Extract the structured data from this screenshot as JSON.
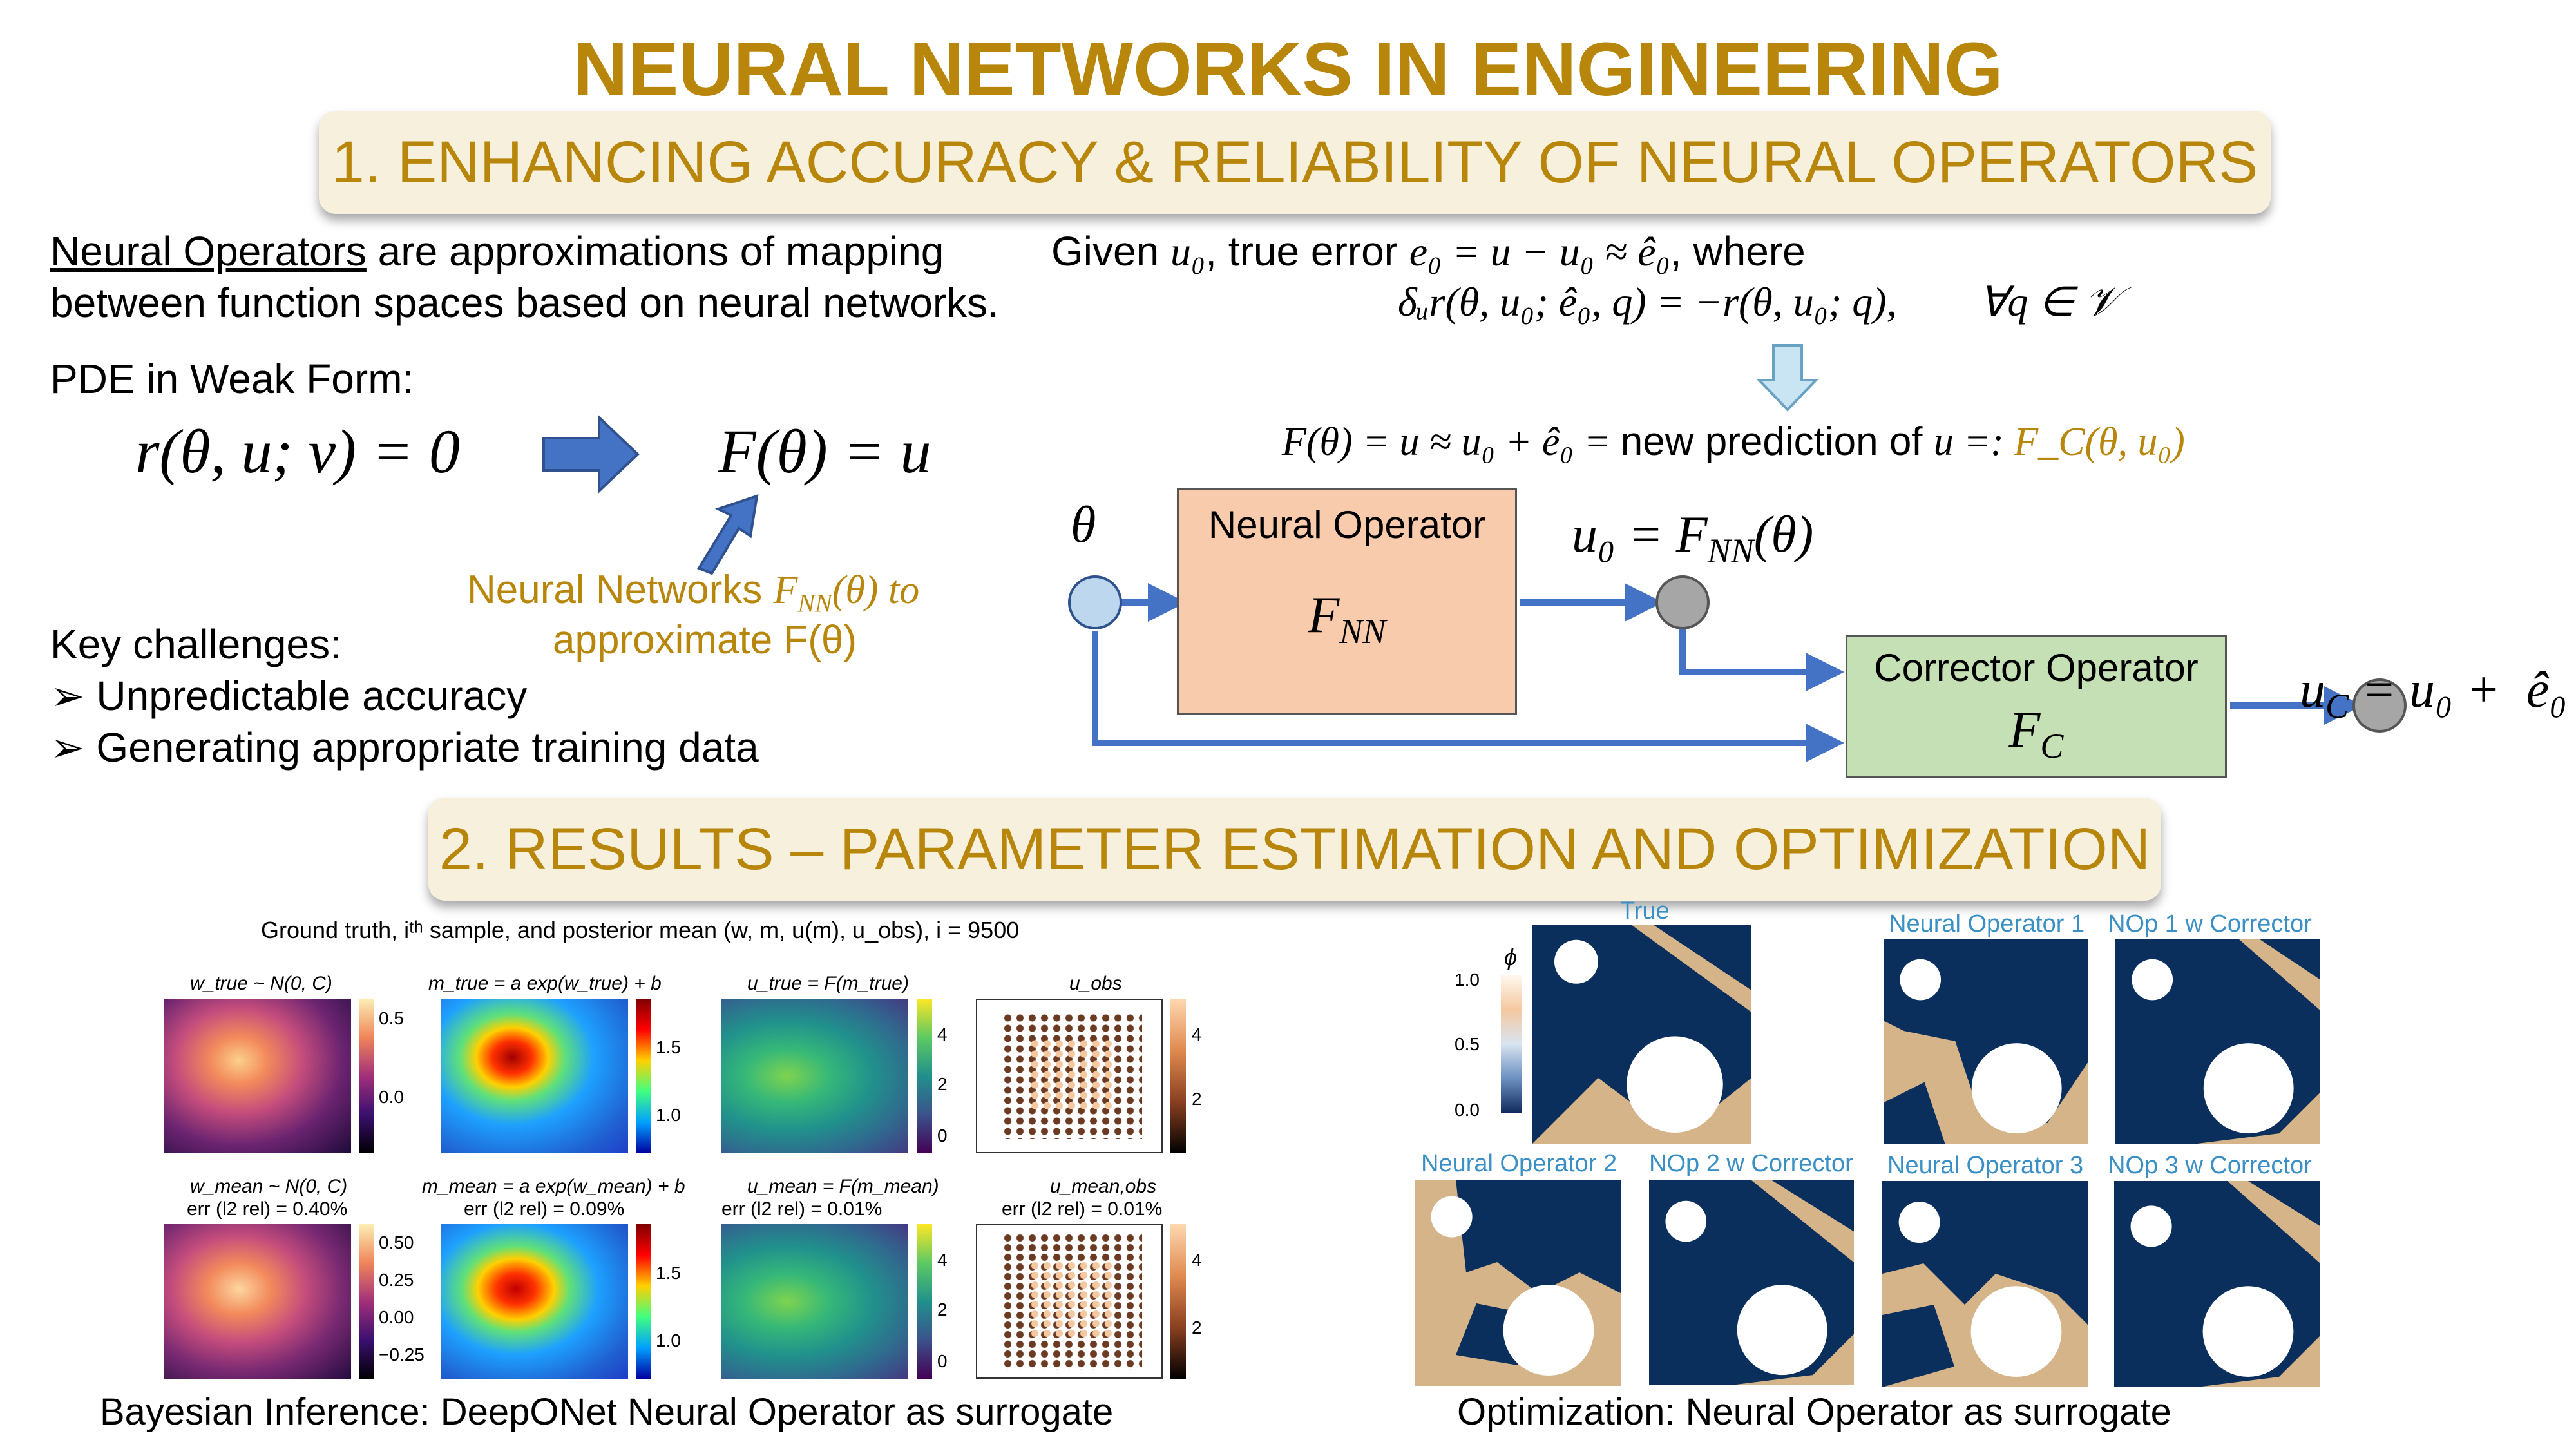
{
  "title": "NEURAL NETWORKS IN ENGINEERING",
  "section1": {
    "banner": "1. ENHANCING ACCURACY & RELIABILITY OF NEURAL OPERATORS",
    "intro_term": "Neural Operators",
    "intro_rest": " are approximations of mapping",
    "intro_line2": "between function spaces based on neural networks.",
    "pde_label": "PDE in Weak Form:",
    "eq_weak": "r(θ, u; v) = 0",
    "eq_map": "F(θ) = u",
    "nn_note_a": "Neural Networks ",
    "nn_note_sym": "F",
    "nn_note_sub": "NN",
    "nn_note_b": "(θ) to",
    "nn_note_line2": "approximate F(θ)",
    "challenges_title": "Key challenges:",
    "challenges": [
      "Unpredictable accuracy",
      "Generating appropriate training data"
    ],
    "given_a": "Given ",
    "given_u0": "u₀",
    "given_b": ", true error ",
    "given_eq": "e₀ = u − u₀ ≈ ê₀",
    "given_c": ", where",
    "var_eq": "δᵤr(θ, u₀; ê₀, q) = −r(θ, u₀; q),        ∀q ∈ 𝒱",
    "pred_eq": "F(θ) = u ≈ u₀ + ê₀ = ",
    "pred_text": "new prediction of ",
    "pred_u": "u =: ",
    "pred_fc": "F_C(θ, u₀)",
    "diagram": {
      "theta": "θ",
      "neural_operator_label": "Neural Operator",
      "fnn_label": "F",
      "fnn_sub": "NN",
      "u0_eq": "u₀ = F",
      "u0_sub": "NN",
      "u0_tail": "(θ)",
      "corrector_label": "Corrector Operator",
      "fc_label": "F",
      "fc_sub": "C",
      "uc_eq": "u",
      "uc_sub": "C",
      "uc_tail": " = u₀ +  ê₀"
    }
  },
  "section2": {
    "banner": "2. RESULTS – PARAMETER ESTIMATION AND OPTIMIZATION",
    "bayes": {
      "header": "Ground truth, iᵗʰ sample, and posterior mean (w, m, u(m), u_obs), i = 9500",
      "row1_titles": [
        "w_true ~ N(0, C)",
        "m_true = a exp(w_true) + b",
        "u_true = F(m_true)",
        "u_obs"
      ],
      "row2_titles": [
        "w_mean ~ N(0, C)",
        "m_mean = a exp(w_mean) + b",
        "u_mean = F(m_mean)",
        "u_mean,obs"
      ],
      "row2_errors": [
        "err (l2 rel) = 0.40%",
        "err (l2 rel) = 0.09%",
        "err (l2 rel) = 0.01%",
        "err (l2 rel) = 0.01%"
      ],
      "cb_row1": [
        [
          "0.5",
          "0.0"
        ],
        [
          "1.5",
          "1.0"
        ],
        [
          "4",
          "2",
          "0"
        ],
        [
          "4",
          "2"
        ]
      ],
      "cb_row2": [
        [
          "0.50",
          "0.25",
          "0.00",
          "−0.25"
        ],
        [
          "1.5",
          "1.0"
        ],
        [
          "4",
          "2",
          "0"
        ],
        [
          "4",
          "2"
        ]
      ],
      "caption": "Bayesian Inference: DeepONet Neural Operator as surrogate"
    },
    "optim": {
      "colorbar_title": "ϕ",
      "colorbar_ticks": [
        "1.0",
        "0.5",
        "0.0"
      ],
      "labels": [
        "True",
        "Neural Operator 1",
        "NOp 1 w Corrector",
        "Neural Operator 2",
        "NOp 2 w Corrector",
        "Neural Operator 3",
        "NOp 3 w Corrector"
      ],
      "caption": "Optimization: Neural Operator as surrogate"
    }
  },
  "colors": {
    "gold": "#b8860b",
    "banner_bg": "#f6f0dc",
    "arrow_blue": "#4472c4",
    "neural_box": "#f8cbad",
    "corrector_box": "#c5e0b4",
    "topology_dark": "#0b2f5c",
    "topology_light": "#d6b48a"
  }
}
